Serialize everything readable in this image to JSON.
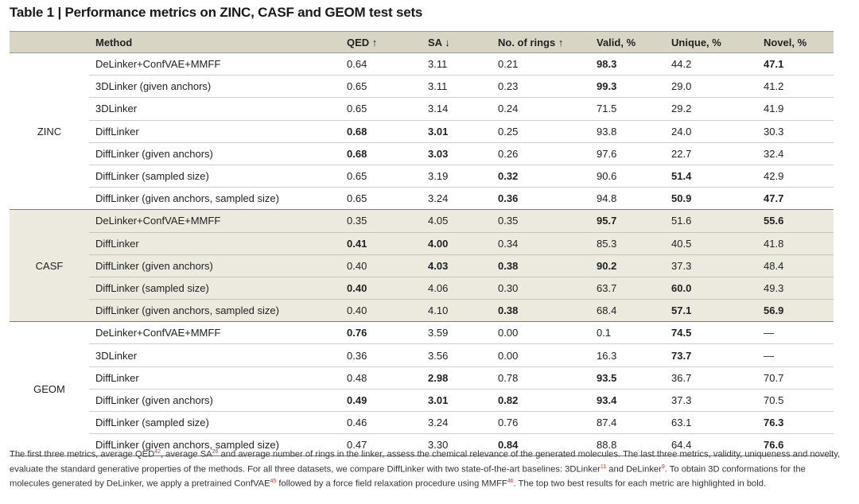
{
  "title": "Table 1 | Performance metrics on ZINC, CASF and GEOM test sets",
  "headers": [
    "",
    "Method",
    "QED ↑",
    "SA ↓",
    "No. of rings ↑",
    "Valid, %",
    "Unique, %",
    "Novel, %"
  ],
  "groups": [
    {
      "dataset": "ZINC",
      "rows": [
        {
          "method": "DeLinker+ConfVAE+MMFF",
          "qed": "0.64",
          "sa": "3.11",
          "rings": "0.21",
          "valid": "98.3",
          "unique": "44.2",
          "novel": "47.1"
        },
        {
          "method": "3DLinker (given anchors)",
          "qed": "0.65",
          "sa": "3.11",
          "rings": "0.23",
          "valid": "99.3",
          "unique": "29.0",
          "novel": "41.2"
        },
        {
          "method": "3DLinker",
          "qed": "0.65",
          "sa": "3.14",
          "rings": "0.24",
          "valid": "71.5",
          "unique": "29.2",
          "novel": "41.9"
        },
        {
          "method": "DiffLinker",
          "qed": "0.68",
          "sa": "3.01",
          "rings": "0.25",
          "valid": "93.8",
          "unique": "24.0",
          "novel": "30.3"
        },
        {
          "method": "DiffLinker (given anchors)",
          "qed": "0.68",
          "sa": "3.03",
          "rings": "0.26",
          "valid": "97.6",
          "unique": "22.7",
          "novel": "32.4"
        },
        {
          "method": "DiffLinker (sampled size)",
          "qed": "0.65",
          "sa": "3.19",
          "rings": "0.32",
          "valid": "90.6",
          "unique": "51.4",
          "novel": "42.9"
        },
        {
          "method": "DiffLinker (given anchors, sampled size)",
          "qed": "0.65",
          "sa": "3.24",
          "rings": "0.36",
          "valid": "94.8",
          "unique": "50.9",
          "novel": "47.7"
        }
      ]
    },
    {
      "dataset": "CASF",
      "rows": [
        {
          "method": "DeLinker+ConfVAE+MMFF",
          "qed": "0.35",
          "sa": "4.05",
          "rings": "0.35",
          "valid": "95.7",
          "unique": "51.6",
          "novel": "55.6"
        },
        {
          "method": "DiffLinker",
          "qed": "0.41",
          "sa": "4.00",
          "rings": "0.34",
          "valid": "85.3",
          "unique": "40.5",
          "novel": "41.8"
        },
        {
          "method": "DiffLinker (given anchors)",
          "qed": "0.40",
          "sa": "4.03",
          "rings": "0.38",
          "valid": "90.2",
          "unique": "37.3",
          "novel": "48.4"
        },
        {
          "method": "DiffLinker (sampled size)",
          "qed": "0.40",
          "sa": "4.06",
          "rings": "0.30",
          "valid": "63.7",
          "unique": "60.0",
          "novel": "49.3"
        },
        {
          "method": "DiffLinker (given anchors, sampled size)",
          "qed": "0.40",
          "sa": "4.10",
          "rings": "0.38",
          "valid": "68.4",
          "unique": "57.1",
          "novel": "56.9"
        }
      ]
    },
    {
      "dataset": "GEOM",
      "rows": [
        {
          "method": "DeLinker+ConfVAE+MMFF",
          "qed": "0.76",
          "sa": "3.59",
          "rings": "0.00",
          "valid": "0.1",
          "unique": "74.5",
          "novel": "—"
        },
        {
          "method": "3DLinker",
          "qed": "0.36",
          "sa": "3.56",
          "rings": "0.00",
          "valid": "16.3",
          "unique": "73.7",
          "novel": "—"
        },
        {
          "method": "DiffLinker",
          "qed": "0.48",
          "sa": "2.98",
          "rings": "0.78",
          "valid": "93.5",
          "unique": "36.7",
          "novel": "70.7"
        },
        {
          "method": "DiffLinker (given anchors)",
          "qed": "0.49",
          "sa": "3.01",
          "rings": "0.82",
          "valid": "93.4",
          "unique": "37.3",
          "novel": "70.5"
        },
        {
          "method": "DiffLinker (sampled size)",
          "qed": "0.46",
          "sa": "3.24",
          "rings": "0.76",
          "valid": "87.4",
          "unique": "63.1",
          "novel": "76.3"
        },
        {
          "method": "DiffLinker (given anchors, sampled size)",
          "qed": "0.47",
          "sa": "3.30",
          "rings": "0.84",
          "valid": "88.8",
          "unique": "64.4",
          "novel": "76.6"
        }
      ]
    }
  ],
  "footnote": {
    "p1": "The first three metrics, average QED",
    "r1": "42",
    "p2": ", average SA",
    "r2": "26",
    "p3": " and average number of rings in the linker, assess the chemical relevance of the generated molecules. The last three metrics, validity, uniqueness and novelty, evaluate the standard generative properties of the methods. For all three datasets, we compare DiffLinker with two state-of-the-art baselines: 3DLinker",
    "r3": "11",
    "p4": " and DeLinker",
    "r4": "9",
    "p5": ". To obtain 3D conformations for the molecules generated by DeLinker, we apply a pretrained ConfVAE",
    "r5": "45",
    "p6": " followed by a force field relaxation procedure using MMFF",
    "r6": "46",
    "p7": ". The top two best results for each metric are highlighted in bold."
  }
}
